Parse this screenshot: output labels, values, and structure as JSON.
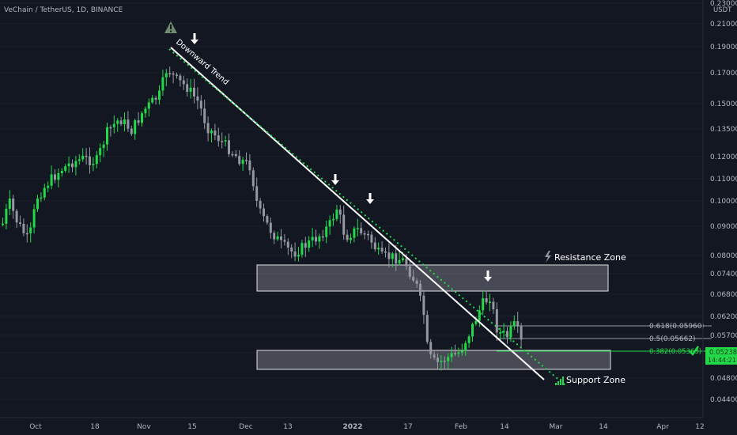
{
  "symbol": "VeChain / TetherUS, 1D, BINANCE",
  "currency": "USDT",
  "price_badge": {
    "price": "0.05238",
    "countdown": "14:44:21",
    "color": "#22d94a"
  },
  "colors": {
    "background": "#131722",
    "up": "#22d94a",
    "down": "#9598a1",
    "accent": "#22d94a",
    "trendline": "#ffffff"
  },
  "annotations": {
    "trend_label": "Downward Trend",
    "resistance_label": "Resistance Zone",
    "support_label": "Support Zone",
    "fib_618": "0.618(0.05960)",
    "fib_5": "0.5(0.05662)",
    "fib_382": "0.382(0.05363)",
    "warning_icon": "warning-triangle-icon",
    "arrow_icon": "down-arrow-icon",
    "check_icon": "checkmark-icon",
    "bolt_icon": "lightning-bolt-icon",
    "signal_icon": "signal-bars-icon"
  },
  "chart_data": {
    "type": "candlestick",
    "title": "VeChain / TetherUS, 1D, BINANCE",
    "y_scale": "log",
    "ylim": [
      0.0425,
      0.236
    ],
    "y_ticks": [
      "0.23000",
      "0.21000",
      "0.19000",
      "0.17000",
      "0.15000",
      "0.13500",
      "0.12000",
      "0.11000",
      "0.10000",
      "0.09000",
      "0.08000",
      "0.07400",
      "0.06800",
      "0.06200",
      "0.05700",
      "0.05200",
      "0.04800",
      "0.04400"
    ],
    "x_ticks": [
      "Oct",
      "18",
      "Nov",
      "15",
      "Dec",
      "13",
      "2022",
      "17",
      "Feb",
      "14",
      "Mar",
      "14",
      "Apr",
      "12"
    ],
    "candles_summary": {
      "peak_approx": 0.178,
      "peak_date_approx": "Nov 9",
      "low_approx": 0.045,
      "low_date_approx": "Jan 22",
      "last_close": 0.05238
    },
    "zones": [
      {
        "name": "Resistance Zone",
        "low": 0.0704,
        "high": 0.0764
      },
      {
        "name": "Support Zone",
        "low": 0.0508,
        "high": 0.0535
      }
    ],
    "fib_levels": [
      {
        "label": "0.618",
        "value": 0.0596
      },
      {
        "label": "0.5",
        "value": 0.05662
      },
      {
        "label": "0.382",
        "value": 0.05363
      }
    ],
    "trendline": {
      "label": "Downward Trend",
      "direction": "down"
    }
  }
}
